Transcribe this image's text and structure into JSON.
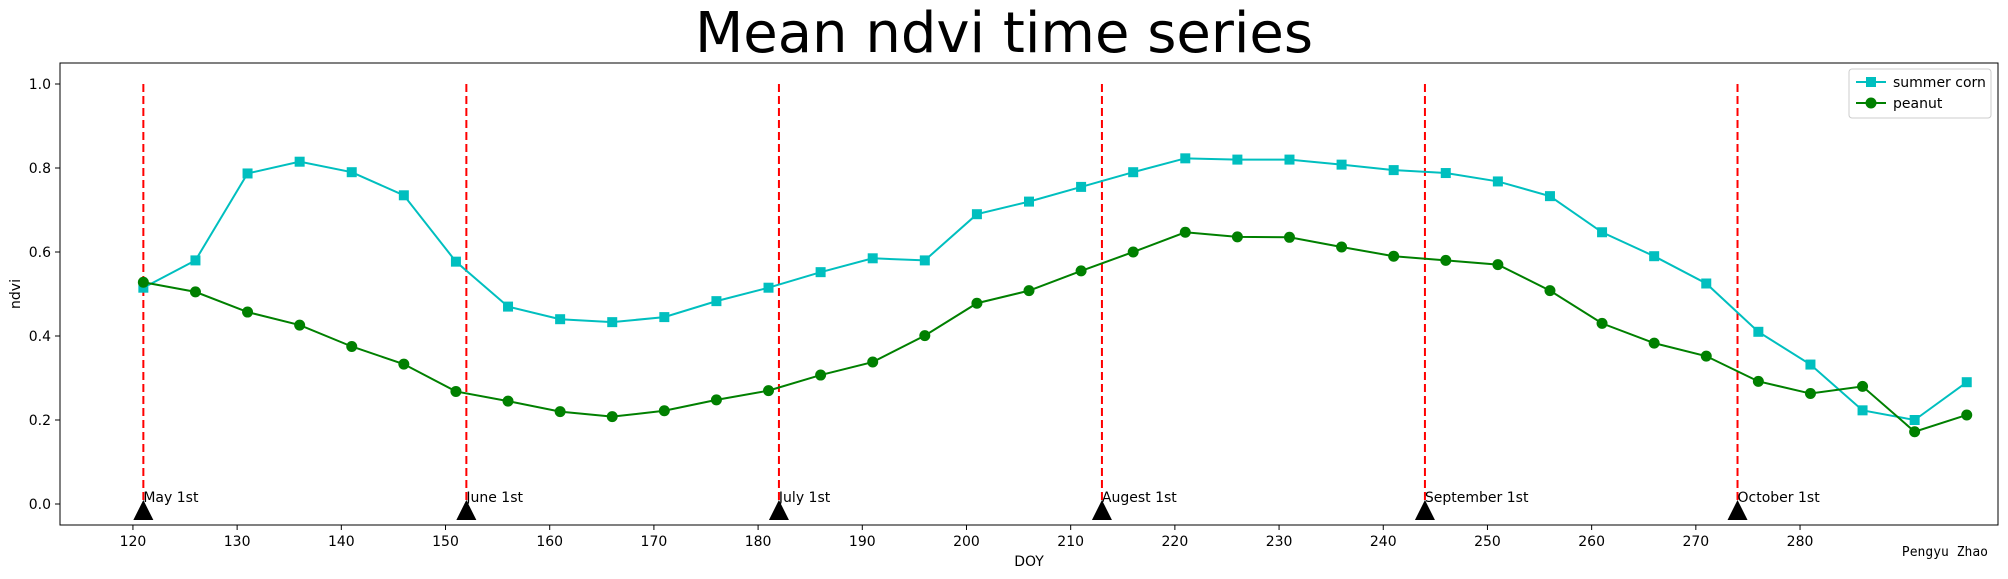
{
  "chart_data": {
    "type": "line",
    "title": "Mean ndvi time series",
    "xlabel": "DOY",
    "ylabel": "ndvi",
    "xlim": [
      113,
      299
    ],
    "ylim": [
      -0.05,
      1.05
    ],
    "xticks": [
      120,
      130,
      140,
      150,
      160,
      170,
      180,
      190,
      200,
      210,
      220,
      230,
      240,
      250,
      260,
      270,
      280
    ],
    "yticks": [
      0.0,
      0.2,
      0.4,
      0.6,
      0.8,
      1.0
    ],
    "x": [
      121,
      126,
      131,
      136,
      141,
      146,
      151,
      156,
      161,
      166,
      171,
      176,
      181,
      186,
      191,
      196,
      201,
      206,
      211,
      216,
      221,
      226,
      231,
      236,
      241,
      246,
      251,
      256,
      261,
      266,
      271,
      276,
      281,
      286,
      291,
      296
    ],
    "series": [
      {
        "name": "summer corn",
        "color": "#00bfbf",
        "marker": "square",
        "values": [
          0.515,
          0.58,
          0.787,
          0.815,
          0.79,
          0.735,
          0.577,
          0.47,
          0.44,
          0.433,
          0.445,
          0.483,
          0.515,
          0.552,
          0.585,
          0.58,
          0.69,
          0.72,
          0.755,
          0.79,
          0.823,
          0.82,
          0.82,
          0.808,
          0.795,
          0.788,
          0.768,
          0.733,
          0.647,
          0.59,
          0.525,
          0.41,
          0.332,
          0.223,
          0.2,
          0.29
        ]
      },
      {
        "name": "peanut",
        "color": "#008000",
        "marker": "circle",
        "values": [
          0.528,
          0.505,
          0.457,
          0.426,
          0.375,
          0.333,
          0.268,
          0.245,
          0.22,
          0.208,
          0.222,
          0.248,
          0.27,
          0.307,
          0.338,
          0.401,
          0.478,
          0.508,
          0.555,
          0.6,
          0.647,
          0.636,
          0.635,
          0.612,
          0.59,
          0.58,
          0.57,
          0.508,
          0.43,
          0.383,
          0.352,
          0.292,
          0.263,
          0.28,
          0.172,
          0.212
        ]
      }
    ],
    "month_markers": [
      {
        "x": 121,
        "label": "May 1st"
      },
      {
        "x": 152,
        "label": "June 1st"
      },
      {
        "x": 182,
        "label": "July 1st"
      },
      {
        "x": 213,
        "label": "Augest 1st"
      },
      {
        "x": 244,
        "label": "September 1st"
      },
      {
        "x": 274,
        "label": "October 1st"
      }
    ],
    "marker_line_color": "#ff0000",
    "marker_triangle_color": "#000000",
    "legend_position": "top-right",
    "grid": false
  },
  "author": "Pengyu Zhao"
}
